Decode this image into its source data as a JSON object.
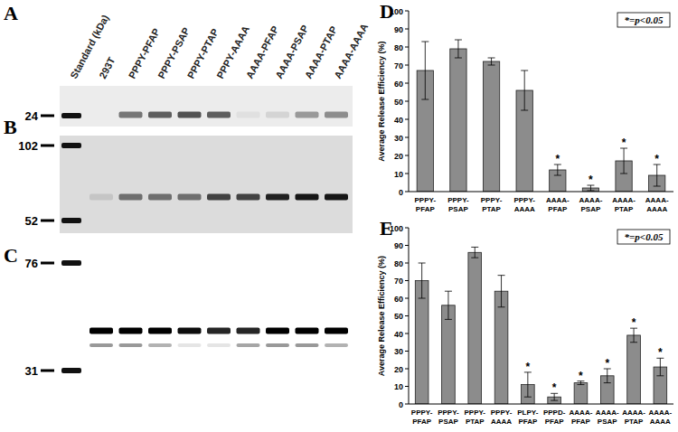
{
  "chart_data": [
    {
      "type": "bar",
      "title": "D",
      "y_label": "Average Release Efficiency (%)",
      "categories": [
        "PPPY-PFAP",
        "PPPY-PSAP",
        "PPPY-PTAP",
        "PPPY-AAAA",
        "AAAA-PFAP",
        "AAAA-PSAP",
        "AAAA-PTAP",
        "AAAA-AAAA"
      ],
      "values": [
        67,
        79,
        72,
        56,
        12,
        2,
        17,
        9
      ],
      "errors": [
        16,
        5,
        2,
        11,
        3,
        1.5,
        7,
        6
      ],
      "significant": [
        false,
        false,
        false,
        false,
        true,
        true,
        true,
        true
      ],
      "significance_mark": "*",
      "annotations": [
        "*=p<0.05"
      ],
      "color": "#8c8c8c",
      "ylim": [
        0,
        100
      ],
      "yticks": [
        0,
        10,
        20,
        30,
        40,
        50,
        60,
        70,
        80,
        90,
        100
      ],
      "grid": false
    },
    {
      "type": "bar",
      "title": "E",
      "y_label": "Average Release Efficiency (%)",
      "categories": [
        "PPPY-PFAP",
        "PPPY-PSAP",
        "PPPY-PTAP",
        "PPPY-AAAA",
        "PLPY-PFAP",
        "PPPD-PFAP",
        "AAAA-PFAP",
        "AAAA-PSAP",
        "AAAA-PTAP",
        "AAAA-AAAA"
      ],
      "values": [
        70,
        56,
        86,
        64,
        11,
        4,
        12,
        16,
        39,
        21
      ],
      "errors": [
        10,
        8,
        3,
        9,
        7,
        2,
        1,
        4,
        4,
        5
      ],
      "significant": [
        false,
        false,
        false,
        false,
        true,
        true,
        true,
        true,
        true,
        true
      ],
      "significance_mark": "*",
      "annotations": [
        "*=p<0.05"
      ],
      "color": "#8c8c8c",
      "ylim": [
        0,
        100
      ],
      "yticks": [
        0,
        10,
        20,
        30,
        40,
        50,
        60,
        70,
        80,
        90,
        100
      ],
      "grid": false
    }
  ],
  "blots": {
    "lanes": [
      "Standard (kDa)",
      "293T",
      "PPPY-PFAP",
      "PPPY-PSAP",
      "PPPY-PTAP",
      "PPPY-AAAA",
      "AAAA-PFAP",
      "AAAA-PSAP",
      "AAAA-PTAP",
      "AAAA-AAAA"
    ],
    "panels": [
      {
        "label": "A",
        "markers": [
          24
        ],
        "bands": [
          [
            0,
            0.5,
            0.6,
            0.65,
            0.6,
            0.05,
            0.1,
            0.35,
            0.4
          ]
        ]
      },
      {
        "label": "B",
        "markers": [
          102,
          52
        ],
        "bands": [
          [
            0.1,
            0.5,
            0.5,
            0.5,
            0.7,
            0.7,
            0.85,
            0.9,
            0.9
          ]
        ]
      },
      {
        "label": "C",
        "markers": [
          76,
          31
        ],
        "bands": [
          [
            1,
            1,
            1,
            0.95,
            0.85,
            0.85,
            1,
            1,
            1
          ],
          [
            0.4,
            0.4,
            0.3,
            0.1,
            0.1,
            0.35,
            0.4,
            0.4,
            0.3
          ]
        ]
      }
    ]
  }
}
